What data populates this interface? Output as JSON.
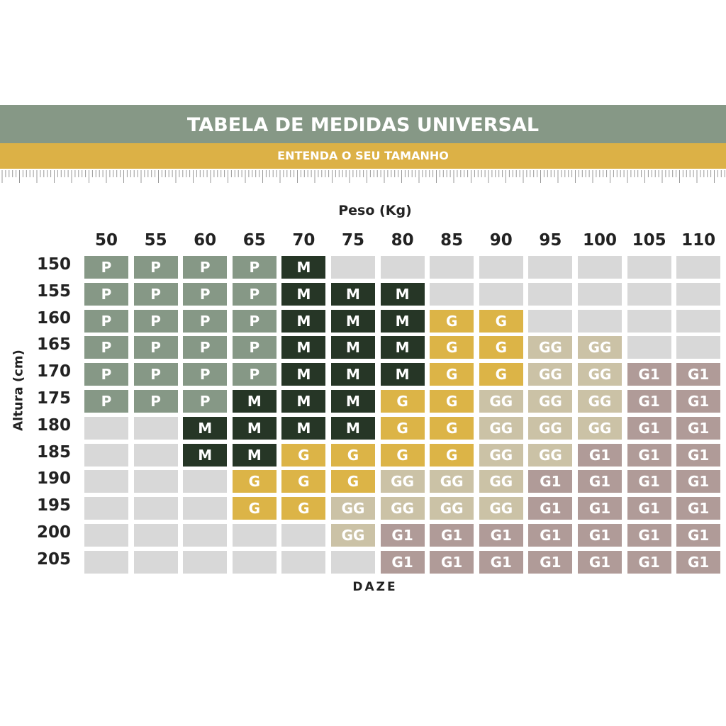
{
  "header": {
    "title": "TABELA DE MEDIDAS UNIVERSAL",
    "subtitle": "ENTENDA O SEU TAMANHO"
  },
  "brand": "DAZE",
  "colors": {
    "P": "#869886",
    "M": "#263626",
    "G": "#dcb447",
    "GG": "#cbc2a6",
    "G1": "#b09b98",
    "empty": "#d8d8d8",
    "header": "#869886",
    "subheader": "#dcb146"
  },
  "chart_data": {
    "type": "table",
    "xlabel": "Peso (Kg)",
    "ylabel": "Altura (cm)",
    "columns": [
      "50",
      "55",
      "60",
      "65",
      "70",
      "75",
      "80",
      "85",
      "90",
      "95",
      "100",
      "105",
      "110"
    ],
    "rows": [
      "150",
      "155",
      "160",
      "165",
      "170",
      "175",
      "180",
      "185",
      "190",
      "195",
      "200",
      "205"
    ],
    "cells": [
      [
        "P",
        "P",
        "P",
        "P",
        "M",
        "",
        "",
        "",
        "",
        "",
        "",
        "",
        ""
      ],
      [
        "P",
        "P",
        "P",
        "P",
        "M",
        "M",
        "M",
        "",
        "",
        "",
        "",
        "",
        ""
      ],
      [
        "P",
        "P",
        "P",
        "P",
        "M",
        "M",
        "M",
        "G",
        "G",
        "",
        "",
        "",
        ""
      ],
      [
        "P",
        "P",
        "P",
        "P",
        "M",
        "M",
        "M",
        "G",
        "G",
        "GG",
        "GG",
        "",
        ""
      ],
      [
        "P",
        "P",
        "P",
        "P",
        "M",
        "M",
        "M",
        "G",
        "G",
        "GG",
        "GG",
        "G1",
        "G1"
      ],
      [
        "P",
        "P",
        "P",
        "M",
        "M",
        "M",
        "G",
        "G",
        "GG",
        "GG",
        "GG",
        "G1",
        "G1"
      ],
      [
        "",
        "",
        "M",
        "M",
        "M",
        "M",
        "G",
        "G",
        "GG",
        "GG",
        "GG",
        "G1",
        "G1"
      ],
      [
        "",
        "",
        "M",
        "M",
        "G",
        "G",
        "G",
        "G",
        "GG",
        "GG",
        "G1",
        "G1",
        "G1"
      ],
      [
        "",
        "",
        "",
        "G",
        "G",
        "G",
        "GG",
        "GG",
        "GG",
        "G1",
        "G1",
        "G1",
        "G1"
      ],
      [
        "",
        "",
        "",
        "G",
        "G",
        "GG",
        "GG",
        "GG",
        "GG",
        "G1",
        "G1",
        "G1",
        "G1"
      ],
      [
        "",
        "",
        "",
        "",
        "",
        "GG",
        "G1",
        "G1",
        "G1",
        "G1",
        "G1",
        "G1",
        "G1"
      ],
      [
        "",
        "",
        "",
        "",
        "",
        "",
        "G1",
        "G1",
        "G1",
        "G1",
        "G1",
        "G1",
        "G1"
      ]
    ]
  }
}
